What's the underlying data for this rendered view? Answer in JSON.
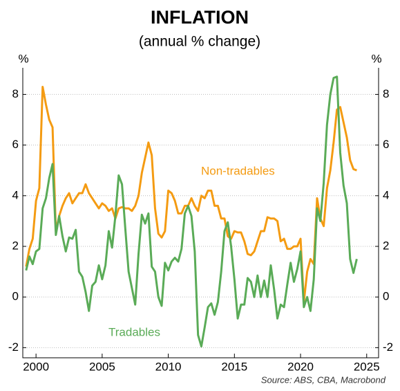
{
  "chart_data": {
    "type": "line",
    "title": "INFLATION",
    "subtitle": "(annual % change)",
    "y_label": "%",
    "y2_label": "%",
    "source": "Source: ABS, CBA, Macrobond",
    "x": [
      1999.25,
      1999.5,
      1999.75,
      2000,
      2000.25,
      2000.5,
      2000.75,
      2001,
      2001.25,
      2001.5,
      2001.75,
      2002,
      2002.25,
      2002.5,
      2002.75,
      2003,
      2003.25,
      2003.5,
      2003.75,
      2004,
      2004.25,
      2004.5,
      2004.75,
      2005,
      2005.25,
      2005.5,
      2005.75,
      2006,
      2006.25,
      2006.5,
      2006.75,
      2007,
      2007.25,
      2007.5,
      2007.75,
      2008,
      2008.25,
      2008.5,
      2008.75,
      2009,
      2009.25,
      2009.5,
      2009.75,
      2010,
      2010.25,
      2010.5,
      2010.75,
      2011,
      2011.25,
      2011.5,
      2011.75,
      2012,
      2012.25,
      2012.5,
      2012.75,
      2013,
      2013.25,
      2013.5,
      2013.75,
      2014,
      2014.25,
      2014.5,
      2014.75,
      2015,
      2015.25,
      2015.5,
      2015.75,
      2016,
      2016.25,
      2016.5,
      2016.75,
      2017,
      2017.25,
      2017.5,
      2017.75,
      2018,
      2018.25,
      2018.5,
      2018.75,
      2019,
      2019.25,
      2019.5,
      2019.75,
      2020,
      2020.25,
      2020.5,
      2020.75,
      2021,
      2021.25,
      2021.5,
      2021.75,
      2022,
      2022.25,
      2022.5,
      2022.75,
      2023,
      2023.25,
      2023.5,
      2023.75,
      2024,
      2024.25
    ],
    "series": [
      {
        "name": "Non-tradables",
        "color": "#f49b12",
        "values": [
          1.2,
          1.9,
          2.3,
          3.8,
          4.3,
          8.3,
          7.6,
          7.0,
          6.7,
          2.6,
          3.2,
          3.6,
          3.9,
          4.1,
          3.7,
          3.9,
          4.1,
          4.1,
          4.45,
          4.1,
          3.9,
          3.7,
          3.5,
          3.7,
          3.6,
          3.4,
          3.5,
          3.1,
          3.5,
          3.55,
          3.5,
          3.5,
          3.4,
          3.6,
          4.0,
          4.9,
          5.5,
          6.1,
          5.6,
          3.5,
          2.5,
          2.35,
          2.6,
          4.2,
          4.1,
          3.8,
          3.3,
          3.3,
          3.6,
          3.6,
          3.9,
          3.6,
          3.4,
          4.0,
          3.9,
          4.2,
          4.2,
          3.6,
          3.6,
          3.1,
          3.1,
          2.4,
          2.3,
          2.6,
          2.55,
          2.55,
          2.2,
          1.7,
          1.65,
          1.8,
          2.2,
          2.6,
          2.6,
          3.15,
          3.1,
          3.1,
          3.0,
          2.2,
          2.3,
          1.9,
          1.9,
          2.0,
          2.0,
          2.3,
          -0.2,
          1.0,
          1.5,
          1.3,
          3.9,
          3.1,
          2.8,
          4.3,
          5.0,
          6.1,
          7.4,
          7.5,
          6.9,
          6.3,
          5.4,
          5.05,
          5.0
        ]
      },
      {
        "name": "Tradables",
        "color": "#5aab57",
        "values": [
          1.05,
          1.6,
          1.3,
          1.8,
          1.9,
          3.5,
          3.9,
          4.7,
          5.25,
          2.45,
          3.2,
          2.4,
          1.8,
          2.35,
          2.3,
          2.65,
          1.0,
          0.8,
          0.2,
          -0.55,
          0.45,
          0.6,
          1.25,
          0.7,
          1.25,
          2.6,
          1.95,
          3.2,
          4.8,
          4.45,
          2.7,
          1.0,
          0.35,
          -0.3,
          1.7,
          3.25,
          2.9,
          3.3,
          1.2,
          1.0,
          0.0,
          -0.35,
          1.35,
          1.05,
          1.4,
          1.55,
          1.4,
          1.9,
          3.3,
          3.6,
          3.2,
          1.8,
          -1.5,
          -1.95,
          -1.2,
          -0.4,
          -0.25,
          -0.7,
          -0.2,
          1.0,
          2.6,
          2.95,
          2.0,
          0.7,
          -0.85,
          -0.3,
          -0.3,
          0.75,
          0.6,
          0.0,
          0.85,
          0.0,
          0.65,
          0.0,
          1.25,
          0.3,
          -0.85,
          -0.3,
          -0.4,
          0.5,
          1.35,
          0.6,
          1.1,
          1.8,
          -0.4,
          0.0,
          -0.55,
          0.7,
          3.5,
          3.0,
          4.5,
          6.8,
          8.0,
          8.65,
          8.7,
          5.7,
          4.4,
          3.7,
          1.5,
          0.95,
          1.5
        ]
      }
    ],
    "xlim": [
      1999,
      2025.9
    ],
    "xticks": [
      2000,
      2005,
      2010,
      2015,
      2020,
      2025
    ],
    "ylim": [
      -2.4,
      9.05
    ],
    "yticks": [
      -2,
      0,
      2,
      4,
      6,
      8
    ],
    "y2lim": [
      -2.4,
      9.05
    ],
    "y2ticks": [
      -2,
      0,
      2,
      4,
      6,
      8
    ],
    "grid": true
  }
}
